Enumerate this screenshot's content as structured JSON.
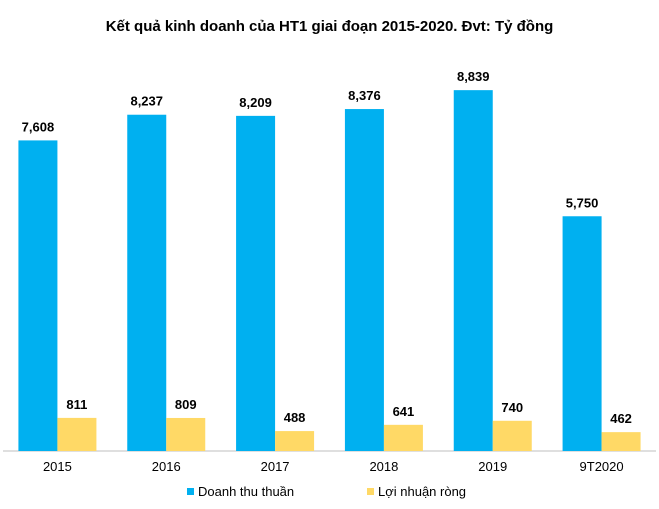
{
  "chart_data": {
    "type": "bar",
    "title": "Kết quả kinh doanh của HT1 giai đoạn 2015-2020. Đvt: Tỷ đồng",
    "categories": [
      "2015",
      "2016",
      "2017",
      "2018",
      "2019",
      "9T2020"
    ],
    "series": [
      {
        "name": "Doanh thu thuần",
        "color": "#00B0F0",
        "values": [
          7608,
          8237,
          8209,
          8376,
          8839,
          5750
        ],
        "labels": [
          "7,608",
          "8,237",
          "8,209",
          "8,376",
          "8,839",
          "5,750"
        ]
      },
      {
        "name": "Lợi nhuận ròng",
        "color": "#FFD966",
        "values": [
          811,
          809,
          488,
          641,
          740,
          462
        ],
        "labels": [
          "811",
          "809",
          "488",
          "641",
          "740",
          "462"
        ]
      }
    ],
    "ylim": [
      0,
      9700
    ],
    "grid": false,
    "legend_position": "bottom"
  }
}
